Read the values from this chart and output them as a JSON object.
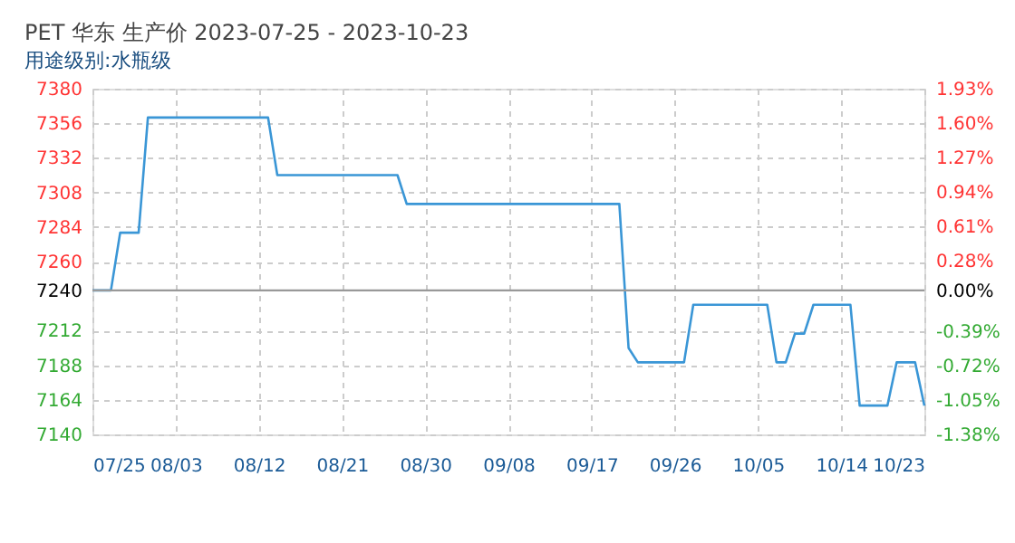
{
  "chart_data": {
    "type": "line",
    "title": "PET 华东 生产价 2023-07-25 - 2023-10-23",
    "subtitle": "用途级别:水瓶级",
    "x": [
      "2023-07-25",
      "2023-07-27",
      "2023-07-28",
      "2023-07-30",
      "2023-07-31",
      "2023-08-13",
      "2023-08-14",
      "2023-08-27",
      "2023-08-28",
      "2023-09-20",
      "2023-09-21",
      "2023-09-22",
      "2023-09-27",
      "2023-09-28",
      "2023-10-06",
      "2023-10-07",
      "2023-10-08",
      "2023-10-09",
      "2023-10-10",
      "2023-10-11",
      "2023-10-15",
      "2023-10-16",
      "2023-10-19",
      "2023-10-20",
      "2023-10-22",
      "2023-10-23"
    ],
    "series": [
      {
        "color": "#3a96d6",
        "values": [
          7240,
          7240,
          7280,
          7280,
          7360,
          7360,
          7320,
          7320,
          7300,
          7300,
          7200,
          7190,
          7190,
          7230,
          7230,
          7190,
          7190,
          7210,
          7210,
          7230,
          7230,
          7160,
          7160,
          7190,
          7190,
          7160
        ]
      }
    ],
    "xlim": [
      "2023-07-25",
      "2023-10-23"
    ],
    "xticks": [
      {
        "value": "2023-07-25",
        "label": "07/25"
      },
      {
        "value": "2023-08-03",
        "label": "08/03"
      },
      {
        "value": "2023-08-12",
        "label": "08/12"
      },
      {
        "value": "2023-08-21",
        "label": "08/21"
      },
      {
        "value": "2023-08-30",
        "label": "08/30"
      },
      {
        "value": "2023-09-08",
        "label": "09/08"
      },
      {
        "value": "2023-09-17",
        "label": "09/17"
      },
      {
        "value": "2023-09-26",
        "label": "09/26"
      },
      {
        "value": "2023-10-05",
        "label": "10/05"
      },
      {
        "value": "2023-10-14",
        "label": "10/14"
      },
      {
        "value": "2023-10-23",
        "label": "10/23"
      }
    ],
    "ylim": [
      7140,
      7380
    ],
    "yticks": [
      7140,
      7164,
      7188,
      7212,
      7240,
      7260,
      7284,
      7308,
      7332,
      7356,
      7380
    ],
    "y2lim": [
      -1.38,
      1.93
    ],
    "y2ticks": [
      {
        "value": -1.38,
        "label": "-1.38%"
      },
      {
        "value": -1.05,
        "label": "-1.05%"
      },
      {
        "value": -0.72,
        "label": "-0.72%"
      },
      {
        "value": -0.39,
        "label": "-0.39%"
      },
      {
        "value": 0,
        "label": "0.00%"
      },
      {
        "value": 0.28,
        "label": "0.28%"
      },
      {
        "value": 0.61,
        "label": "0.61%"
      },
      {
        "value": 0.94,
        "label": "0.94%"
      },
      {
        "value": 1.27,
        "label": "1.27%"
      },
      {
        "value": 1.6,
        "label": "1.60%"
      },
      {
        "value": 1.93,
        "label": "1.93%"
      }
    ],
    "ref_lines": [
      {
        "axis": "y",
        "value": 7240,
        "color": "#999999"
      }
    ],
    "grid": true,
    "line_style": "solid",
    "marker": "none"
  }
}
